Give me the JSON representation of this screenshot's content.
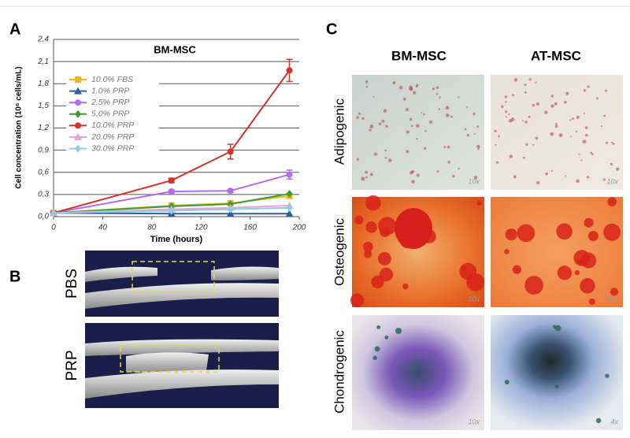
{
  "chart_data": {
    "type": "line",
    "title": "BM-MSC",
    "x_label": "Time (hours)",
    "y_label": "Cell concentration (10⁶ cells/mL)",
    "x": [
      0,
      96,
      144,
      192
    ],
    "xlim": [
      0,
      200
    ],
    "xticks": [
      0,
      40,
      80,
      120,
      160,
      200
    ],
    "ylim": [
      0,
      2.4
    ],
    "yticks": [
      {
        "value": 0,
        "label": "0,0"
      },
      {
        "value": 0.3,
        "label": "0,3"
      },
      {
        "value": 0.6,
        "label": "0,6"
      },
      {
        "value": 0.9,
        "label": "0,9"
      },
      {
        "value": 1.2,
        "label": "1,2"
      },
      {
        "value": 1.5,
        "label": "1,5"
      },
      {
        "value": 1.8,
        "label": "1,8"
      },
      {
        "value": 2.1,
        "label": "2,1"
      },
      {
        "value": 2.4,
        "label": "2,4"
      }
    ],
    "grid": true,
    "legend": "upper left",
    "series": [
      {
        "name": "10.0% FBS",
        "color": "#f2b417",
        "marker": "square",
        "values": [
          0.05,
          0.15,
          0.18,
          0.28
        ]
      },
      {
        "name": "1.0% PRP",
        "color": "#2d5f9e",
        "marker": "triangle",
        "values": [
          0.05,
          0.04,
          0.04,
          0.04
        ]
      },
      {
        "name": "2.5% PRP",
        "color": "#b46cea",
        "marker": "circle",
        "values": [
          0.05,
          0.34,
          0.35,
          0.57
        ],
        "errors": [
          0.02,
          0.02,
          0.02,
          0.06
        ]
      },
      {
        "name": "5.0% PRP",
        "color": "#3a9b3a",
        "marker": "diamond",
        "values": [
          0.05,
          0.14,
          0.17,
          0.31
        ]
      },
      {
        "name": "10.0% PRP",
        "color": "#d1322b",
        "marker": "circle",
        "values": [
          0.05,
          0.49,
          0.88,
          1.98
        ],
        "errors": [
          0.02,
          0.03,
          0.1,
          0.15
        ]
      },
      {
        "name": "20.0% PRP",
        "color": "#eba3d6",
        "marker": "triangle",
        "values": [
          0.05,
          0.1,
          0.12,
          0.15
        ]
      },
      {
        "name": "30.0% PRP",
        "color": "#8fcde6",
        "marker": "diamond",
        "values": [
          0.05,
          0.08,
          0.1,
          0.12
        ]
      }
    ]
  },
  "figure": {
    "panel_labels": [
      "A",
      "B",
      "C"
    ],
    "panel_b_rows": [
      "PBS",
      "PRP"
    ],
    "panel_c_columns": [
      "BM-MSC",
      "AT-MSC"
    ],
    "panel_c_rows": [
      "Adipogenic",
      "Osteogenic",
      "Chondrogenic"
    ],
    "magnifications": [
      [
        "10x",
        "10x"
      ],
      [
        "10x",
        "10x"
      ],
      [
        "10x",
        "4x"
      ]
    ]
  }
}
